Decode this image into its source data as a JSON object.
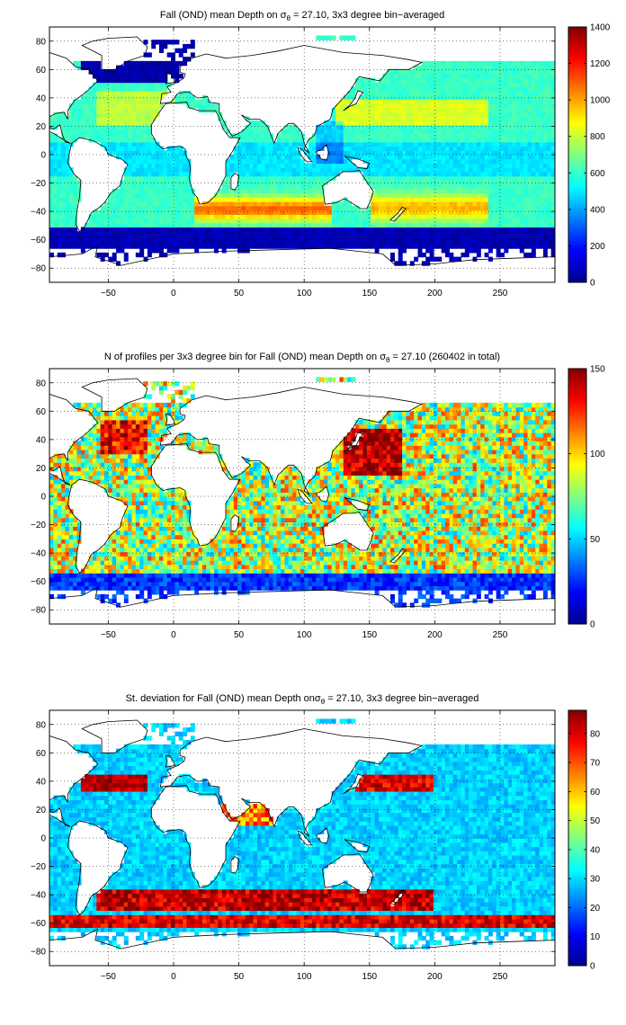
{
  "figure": {
    "background": "#ffffff",
    "colormap": "jet",
    "panels": [
      {
        "id": "depth",
        "title_parts": [
          "Fall (OND) mean Depth on σ",
          "θ",
          " = 27.10, 3x3 degree bin−averaged"
        ],
        "colorbar": {
          "ticks": [
            "0",
            "200",
            "400",
            "600",
            "800",
            "1000",
            "1200",
            "1400"
          ]
        }
      },
      {
        "id": "count",
        "title_parts": [
          "N of profiles per 3x3 degree bin for Fall (OND) mean Depth on σ",
          "θ",
          " = 27.10 (260402 in total)"
        ],
        "colorbar": {
          "ticks": [
            "0",
            "50",
            "100",
            "150"
          ]
        }
      },
      {
        "id": "stdev",
        "title_parts": [
          "St. deviation for Fall (OND) mean Depth onσ",
          "θ",
          " = 27.10, 3x3 degree bin−averaged"
        ],
        "colorbar": {
          "ticks": [
            "0",
            "10",
            "20",
            "30",
            "40",
            "50",
            "60",
            "70",
            "80"
          ]
        }
      }
    ]
  },
  "chart_data": [
    {
      "type": "heatmap",
      "title": "Fall (OND) mean Depth on σθ = 27.10, 3x3 degree bin−averaged",
      "xlim": [
        -95,
        292
      ],
      "ylim": [
        -90,
        90
      ],
      "xticks": [
        -50,
        0,
        50,
        100,
        150,
        200,
        250
      ],
      "yticks": [
        -80,
        -60,
        -40,
        -20,
        0,
        20,
        40,
        60,
        80
      ],
      "grid": true,
      "clim": [
        0,
        1400
      ],
      "colorbar_ticks": [
        0,
        200,
        400,
        600,
        800,
        1000,
        1200,
        1400
      ],
      "colorbar_position": "right",
      "bin_size_deg": 3
    },
    {
      "type": "heatmap",
      "title": "N of profiles per 3x3 degree bin for Fall (OND) mean Depth on σθ = 27.10 (260402 in total)",
      "xlim": [
        -95,
        292
      ],
      "ylim": [
        -90,
        90
      ],
      "xticks": [
        -50,
        0,
        50,
        100,
        150,
        200,
        250
      ],
      "yticks": [
        -80,
        -60,
        -40,
        -20,
        0,
        20,
        40,
        60,
        80
      ],
      "grid": true,
      "clim": [
        0,
        150
      ],
      "colorbar_ticks": [
        0,
        50,
        100,
        150
      ],
      "colorbar_position": "right",
      "bin_size_deg": 3
    },
    {
      "type": "heatmap",
      "title": "St. deviation for Fall (OND) mean Depth onσθ = 27.10, 3x3 degree bin−averaged",
      "xlim": [
        -95,
        292
      ],
      "ylim": [
        -90,
        90
      ],
      "xticks": [
        -50,
        0,
        50,
        100,
        150,
        200,
        250
      ],
      "yticks": [
        -80,
        -60,
        -40,
        -20,
        0,
        20,
        40,
        60,
        80
      ],
      "grid": true,
      "clim": [
        0,
        88
      ],
      "colorbar_ticks": [
        0,
        10,
        20,
        30,
        40,
        50,
        60,
        70,
        80
      ],
      "colorbar_position": "right",
      "bin_size_deg": 3
    }
  ]
}
